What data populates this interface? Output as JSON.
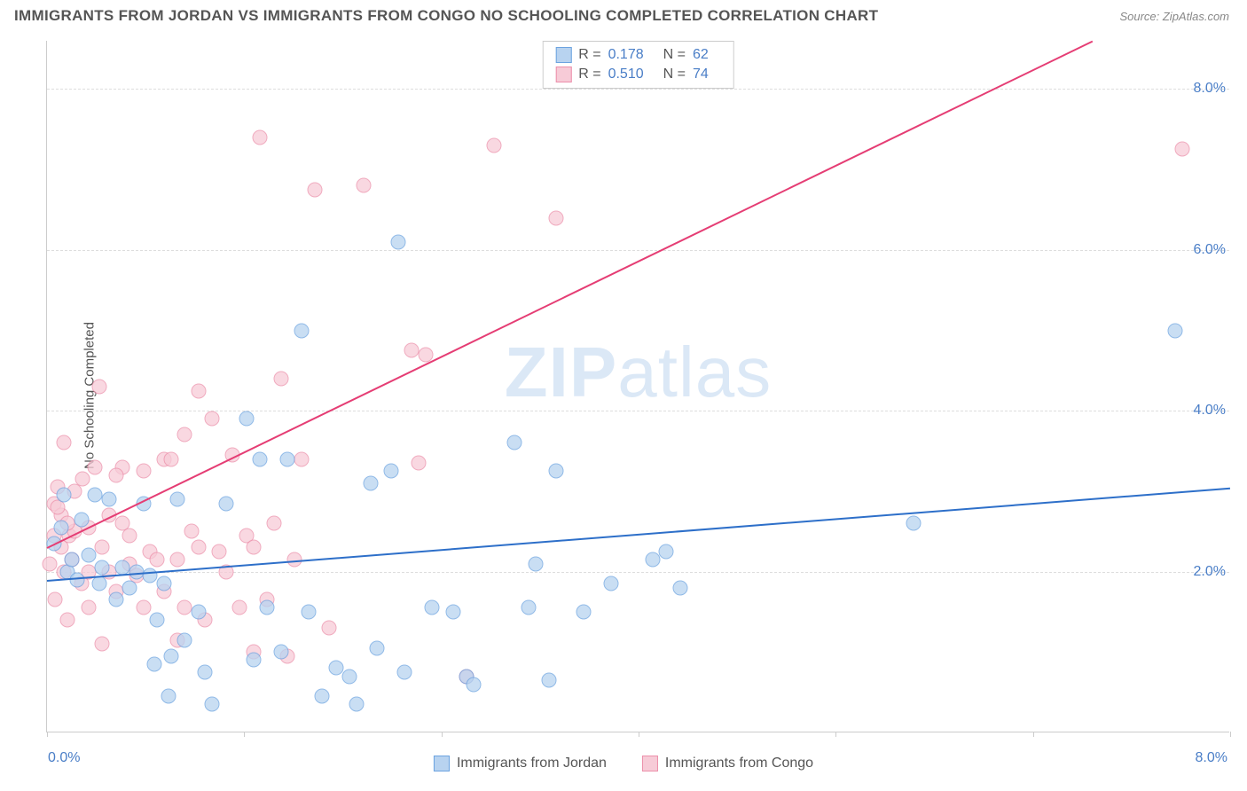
{
  "title": "IMMIGRANTS FROM JORDAN VS IMMIGRANTS FROM CONGO NO SCHOOLING COMPLETED CORRELATION CHART",
  "source": "Source: ZipAtlas.com",
  "watermark_bold": "ZIP",
  "watermark_light": "atlas",
  "y_axis_label": "No Schooling Completed",
  "series": {
    "jordan": {
      "label": "Immigrants from Jordan",
      "r": "0.178",
      "n": "62",
      "fill_color": "#b8d3f0",
      "stroke_color": "#6ca3e0",
      "line_color": "#2d6fc9",
      "reg_start": {
        "x": 0.0,
        "y": 1.9
      },
      "reg_end": {
        "x": 8.6,
        "y": 3.05
      },
      "points": [
        {
          "x": 0.05,
          "y": 2.35
        },
        {
          "x": 0.1,
          "y": 2.55
        },
        {
          "x": 0.12,
          "y": 2.95
        },
        {
          "x": 0.15,
          "y": 2.0
        },
        {
          "x": 0.18,
          "y": 2.15
        },
        {
          "x": 0.22,
          "y": 1.9
        },
        {
          "x": 0.25,
          "y": 2.65
        },
        {
          "x": 0.3,
          "y": 2.2
        },
        {
          "x": 0.35,
          "y": 2.95
        },
        {
          "x": 0.38,
          "y": 1.85
        },
        {
          "x": 0.4,
          "y": 2.05
        },
        {
          "x": 0.45,
          "y": 2.9
        },
        {
          "x": 0.5,
          "y": 1.65
        },
        {
          "x": 0.55,
          "y": 2.05
        },
        {
          "x": 0.6,
          "y": 1.8
        },
        {
          "x": 0.65,
          "y": 2.0
        },
        {
          "x": 0.7,
          "y": 2.85
        },
        {
          "x": 0.75,
          "y": 1.95
        },
        {
          "x": 0.78,
          "y": 0.85
        },
        {
          "x": 0.8,
          "y": 1.4
        },
        {
          "x": 0.85,
          "y": 1.85
        },
        {
          "x": 0.88,
          "y": 0.45
        },
        {
          "x": 0.9,
          "y": 0.95
        },
        {
          "x": 0.95,
          "y": 2.9
        },
        {
          "x": 1.0,
          "y": 1.15
        },
        {
          "x": 1.1,
          "y": 1.5
        },
        {
          "x": 1.15,
          "y": 0.75
        },
        {
          "x": 1.2,
          "y": 0.35
        },
        {
          "x": 1.3,
          "y": 2.85
        },
        {
          "x": 1.45,
          "y": 3.9
        },
        {
          "x": 1.5,
          "y": 0.9
        },
        {
          "x": 1.55,
          "y": 3.4
        },
        {
          "x": 1.6,
          "y": 1.55
        },
        {
          "x": 1.7,
          "y": 1.0
        },
        {
          "x": 1.75,
          "y": 3.4
        },
        {
          "x": 1.85,
          "y": 5.0
        },
        {
          "x": 1.9,
          "y": 1.5
        },
        {
          "x": 2.0,
          "y": 0.45
        },
        {
          "x": 2.1,
          "y": 0.8
        },
        {
          "x": 2.2,
          "y": 0.7
        },
        {
          "x": 2.25,
          "y": 0.35
        },
        {
          "x": 2.35,
          "y": 3.1
        },
        {
          "x": 2.4,
          "y": 1.05
        },
        {
          "x": 2.5,
          "y": 3.25
        },
        {
          "x": 2.55,
          "y": 6.1
        },
        {
          "x": 2.6,
          "y": 0.75
        },
        {
          "x": 2.8,
          "y": 1.55
        },
        {
          "x": 2.95,
          "y": 1.5
        },
        {
          "x": 3.05,
          "y": 0.7
        },
        {
          "x": 3.1,
          "y": 0.6
        },
        {
          "x": 3.4,
          "y": 3.6
        },
        {
          "x": 3.5,
          "y": 1.55
        },
        {
          "x": 3.55,
          "y": 2.1
        },
        {
          "x": 3.65,
          "y": 0.65
        },
        {
          "x": 3.7,
          "y": 3.25
        },
        {
          "x": 3.9,
          "y": 1.5
        },
        {
          "x": 4.1,
          "y": 1.85
        },
        {
          "x": 4.5,
          "y": 2.25
        },
        {
          "x": 4.6,
          "y": 1.8
        },
        {
          "x": 6.3,
          "y": 2.6
        },
        {
          "x": 8.2,
          "y": 5.0
        },
        {
          "x": 4.4,
          "y": 2.15
        }
      ]
    },
    "congo": {
      "label": "Immigrants from Congo",
      "r": "0.510",
      "n": "74",
      "fill_color": "#f7cbd7",
      "stroke_color": "#ec8faa",
      "line_color": "#e53d74",
      "reg_start": {
        "x": 0.0,
        "y": 2.3
      },
      "reg_end": {
        "x": 7.6,
        "y": 8.6
      },
      "points": [
        {
          "x": 0.02,
          "y": 2.1
        },
        {
          "x": 0.05,
          "y": 2.45
        },
        {
          "x": 0.05,
          "y": 2.85
        },
        {
          "x": 0.06,
          "y": 1.65
        },
        {
          "x": 0.08,
          "y": 3.05
        },
        {
          "x": 0.1,
          "y": 2.3
        },
        {
          "x": 0.1,
          "y": 2.7
        },
        {
          "x": 0.12,
          "y": 3.6
        },
        {
          "x": 0.15,
          "y": 1.4
        },
        {
          "x": 0.16,
          "y": 2.45
        },
        {
          "x": 0.18,
          "y": 2.15
        },
        {
          "x": 0.2,
          "y": 2.5
        },
        {
          "x": 0.2,
          "y": 3.0
        },
        {
          "x": 0.25,
          "y": 1.85
        },
        {
          "x": 0.26,
          "y": 3.15
        },
        {
          "x": 0.3,
          "y": 2.55
        },
        {
          "x": 0.3,
          "y": 1.55
        },
        {
          "x": 0.35,
          "y": 3.3
        },
        {
          "x": 0.38,
          "y": 4.3
        },
        {
          "x": 0.4,
          "y": 1.1
        },
        {
          "x": 0.4,
          "y": 2.3
        },
        {
          "x": 0.45,
          "y": 2.7
        },
        {
          "x": 0.5,
          "y": 1.75
        },
        {
          "x": 0.55,
          "y": 2.6
        },
        {
          "x": 0.55,
          "y": 3.3
        },
        {
          "x": 0.6,
          "y": 2.1
        },
        {
          "x": 0.65,
          "y": 1.95
        },
        {
          "x": 0.7,
          "y": 3.25
        },
        {
          "x": 0.7,
          "y": 1.55
        },
        {
          "x": 0.75,
          "y": 2.25
        },
        {
          "x": 0.8,
          "y": 2.15
        },
        {
          "x": 0.85,
          "y": 3.4
        },
        {
          "x": 0.85,
          "y": 1.75
        },
        {
          "x": 0.9,
          "y": 3.4
        },
        {
          "x": 0.95,
          "y": 2.15
        },
        {
          "x": 0.95,
          "y": 1.15
        },
        {
          "x": 1.0,
          "y": 3.7
        },
        {
          "x": 1.0,
          "y": 1.55
        },
        {
          "x": 1.05,
          "y": 2.5
        },
        {
          "x": 1.1,
          "y": 2.3
        },
        {
          "x": 1.1,
          "y": 4.25
        },
        {
          "x": 1.15,
          "y": 1.4
        },
        {
          "x": 1.2,
          "y": 3.9
        },
        {
          "x": 1.25,
          "y": 2.25
        },
        {
          "x": 1.3,
          "y": 2.0
        },
        {
          "x": 1.35,
          "y": 3.45
        },
        {
          "x": 1.4,
          "y": 1.55
        },
        {
          "x": 1.45,
          "y": 2.45
        },
        {
          "x": 1.5,
          "y": 1.0
        },
        {
          "x": 1.5,
          "y": 2.3
        },
        {
          "x": 1.55,
          "y": 7.4
        },
        {
          "x": 1.6,
          "y": 1.65
        },
        {
          "x": 1.65,
          "y": 2.6
        },
        {
          "x": 1.7,
          "y": 4.4
        },
        {
          "x": 1.75,
          "y": 0.95
        },
        {
          "x": 1.8,
          "y": 2.15
        },
        {
          "x": 1.85,
          "y": 3.4
        },
        {
          "x": 1.95,
          "y": 6.75
        },
        {
          "x": 2.05,
          "y": 1.3
        },
        {
          "x": 2.3,
          "y": 6.8
        },
        {
          "x": 2.65,
          "y": 4.75
        },
        {
          "x": 2.7,
          "y": 3.35
        },
        {
          "x": 2.75,
          "y": 4.7
        },
        {
          "x": 3.05,
          "y": 0.7
        },
        {
          "x": 3.25,
          "y": 7.3
        },
        {
          "x": 3.7,
          "y": 6.4
        },
        {
          "x": 8.25,
          "y": 7.25
        },
        {
          "x": 0.3,
          "y": 2.0
        },
        {
          "x": 0.6,
          "y": 2.45
        },
        {
          "x": 0.15,
          "y": 2.6
        },
        {
          "x": 0.08,
          "y": 2.8
        },
        {
          "x": 0.45,
          "y": 2.0
        },
        {
          "x": 0.12,
          "y": 2.0
        },
        {
          "x": 0.5,
          "y": 3.2
        }
      ]
    }
  },
  "axes": {
    "x": {
      "min": 0.0,
      "max": 8.6,
      "label_min": "0.0%",
      "label_max": "8.0%",
      "ticks": [
        0.0,
        1.43,
        2.87,
        4.3,
        5.73,
        7.17,
        8.6
      ]
    },
    "y": {
      "min": 0.0,
      "max": 8.6,
      "ticks": [
        {
          "v": 2.0,
          "label": "2.0%"
        },
        {
          "v": 4.0,
          "label": "4.0%"
        },
        {
          "v": 6.0,
          "label": "6.0%"
        },
        {
          "v": 8.0,
          "label": "8.0%"
        }
      ]
    }
  },
  "legend_stat_labels": {
    "r": "R  =",
    "n": "N  ="
  },
  "colors": {
    "text": "#555555",
    "value": "#4a7ec7",
    "bg": "#ffffff",
    "grid": "#dddddd",
    "border": "#cccccc"
  }
}
